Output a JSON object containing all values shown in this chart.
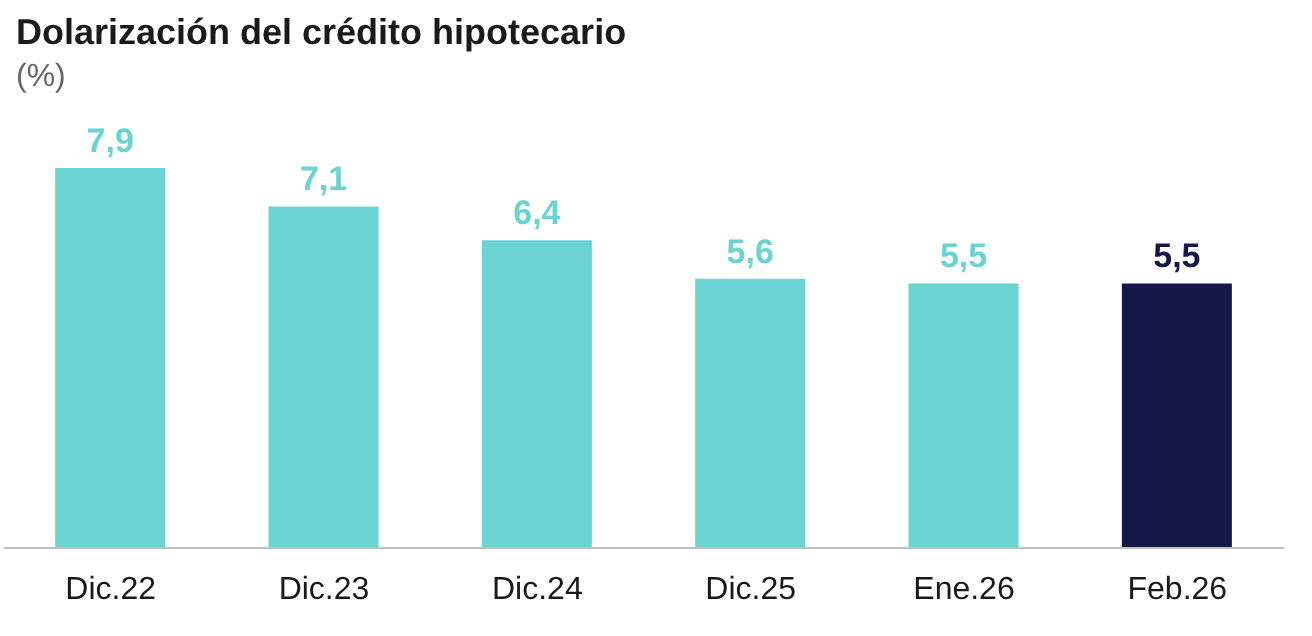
{
  "chart_data": {
    "type": "bar",
    "title": "Dolarización del crédito hipotecario",
    "subtitle": "(%)",
    "categories": [
      "Dic.22",
      "Dic.23",
      "Dic.24",
      "Dic.25",
      "Ene.26",
      "Feb.26"
    ],
    "values": [
      7.9,
      7.1,
      6.4,
      5.6,
      5.5,
      5.5
    ],
    "colors": [
      "#6bd4d3",
      "#6bd4d3",
      "#6bd4d3",
      "#6bd4d3",
      "#6bd4d3",
      "#16184a"
    ],
    "value_labels": [
      "7,9",
      "7,1",
      "6,4",
      "5,6",
      "5,5",
      "5,5"
    ],
    "grid": false,
    "legend": false
  }
}
